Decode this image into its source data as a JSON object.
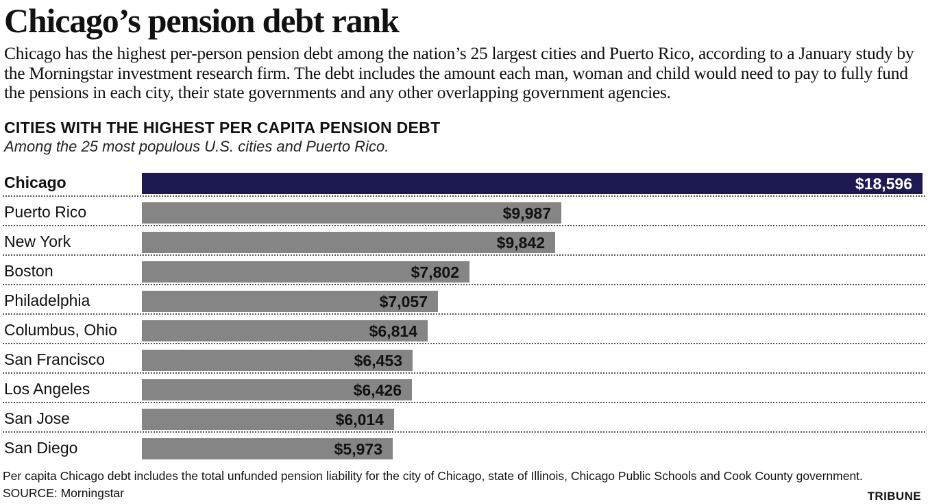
{
  "headline": "Chicago’s pension debt rank",
  "dek": "Chicago has the highest per-person pension debt among the nation’s 25 largest cities and Puerto Rico, according to a January study by the Morningstar investment research firm. The debt includes the amount each man, woman and child would need to pay to fully fund the pensions in each city, their state governments and any other overlapping government agencies.",
  "chart_data": {
    "type": "bar",
    "orientation": "horizontal",
    "title": "CITIES WITH THE HIGHEST  PER CAPITA PENSION DEBT",
    "subtitle": "Among the 25 most populous U.S. cities and Puerto Rico.",
    "xlabel": "",
    "ylabel": "",
    "xlim": [
      0,
      18596
    ],
    "grid": false,
    "highlight": "Chicago",
    "highlight_color": "#1c1a50",
    "bar_color": "#858585",
    "categories": [
      "Chicago",
      "Puerto Rico",
      "New York",
      "Boston",
      "Philadelphia",
      "Columbus, Ohio",
      "San Francisco",
      "Los Angeles",
      "San Jose",
      "San Diego"
    ],
    "values": [
      18596,
      9987,
      9842,
      7802,
      7057,
      6814,
      6453,
      6426,
      6014,
      5973
    ],
    "value_labels": [
      "$18,596",
      "$9,987",
      "$9,842",
      "$7,802",
      "$7,057",
      "$6,814",
      "$6,453",
      "$6,426",
      "$6,014",
      "$5,973"
    ]
  },
  "footnote": "Per capita Chicago debt includes the total unfunded pension liability for the city of Chicago, state of Illinois, Chicago Public Schools and Cook County government.",
  "source": "SOURCE: Morningstar",
  "credit": "TRIBUNE"
}
